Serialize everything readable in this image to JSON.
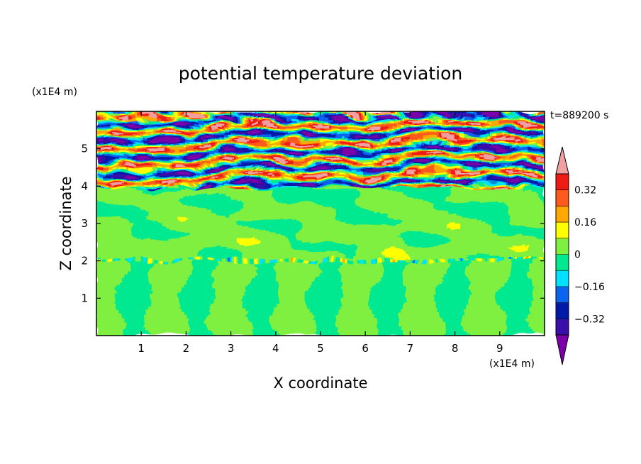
{
  "chart_data": {
    "type": "heatmap",
    "title": "potential temperature deviation",
    "xlabel": "X coordinate",
    "ylabel": "Z coordinate",
    "x_unit_label": "(x1E4 m)",
    "y_unit_label": "(x1E4 m)",
    "time_label": "t=889200 s",
    "xlim": [
      0,
      10
    ],
    "ylim": [
      0,
      6
    ],
    "x_ticks": [
      "1",
      "2",
      "3",
      "4",
      "5",
      "6",
      "7",
      "8",
      "9"
    ],
    "y_ticks": [
      "1",
      "2",
      "3",
      "4",
      "5"
    ],
    "colorbar": {
      "levels": [
        -0.48,
        -0.4,
        -0.32,
        -0.24,
        -0.16,
        -0.08,
        0,
        0.08,
        0.16,
        0.24,
        0.32,
        0.4,
        0.48
      ],
      "tick_labels": [
        "0.32",
        "0.16",
        "0",
        "−0.16",
        "−0.32"
      ],
      "tick_values": [
        0.32,
        0.16,
        0,
        -0.16,
        -0.32
      ],
      "colors": [
        "#7b00a8",
        "#3a0ea8",
        "#001aa8",
        "#0a64f0",
        "#00e0ff",
        "#00e890",
        "#80f040",
        "#ffff00",
        "#ffa800",
        "#ff5a1e",
        "#f01a14",
        "#f0a0a0"
      ],
      "extend": "both"
    },
    "structure": {
      "lower_layer_z": [
        0,
        2.05
      ],
      "interface_z": 2.05,
      "middle_layer_z": [
        2.05,
        3.95
      ],
      "upper_layer_z": [
        3.95,
        6.0
      ]
    }
  }
}
